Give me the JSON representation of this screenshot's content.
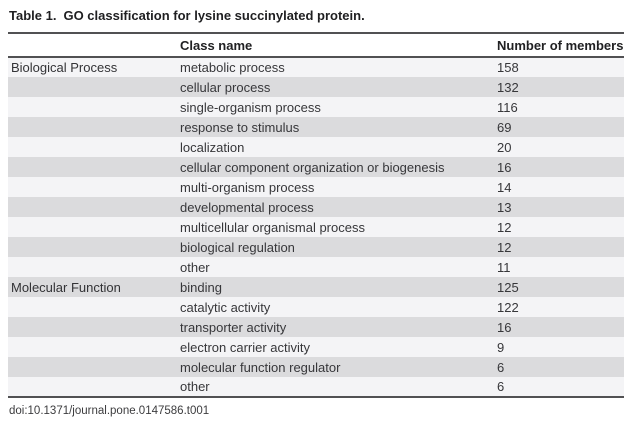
{
  "title": {
    "label": "Table 1.",
    "text": "GO classification for lysine succinylated protein."
  },
  "table": {
    "columns": {
      "group": "",
      "class_name": "Class name",
      "members": "Number of members"
    },
    "groups": [
      {
        "name": "Biological Process",
        "rows": [
          {
            "class_name": "metabolic process",
            "members": 158
          },
          {
            "class_name": "cellular process",
            "members": 132
          },
          {
            "class_name": "single-organism process",
            "members": 116
          },
          {
            "class_name": "response to stimulus",
            "members": 69
          },
          {
            "class_name": "localization",
            "members": 20
          },
          {
            "class_name": "cellular component organization or biogenesis",
            "members": 16
          },
          {
            "class_name": "multi-organism process",
            "members": 14
          },
          {
            "class_name": "developmental process",
            "members": 13
          },
          {
            "class_name": "multicellular organismal process",
            "members": 12
          },
          {
            "class_name": "biological regulation",
            "members": 12
          },
          {
            "class_name": "other",
            "members": 11
          }
        ]
      },
      {
        "name": "Molecular Function",
        "rows": [
          {
            "class_name": "binding",
            "members": 125
          },
          {
            "class_name": "catalytic activity",
            "members": 122
          },
          {
            "class_name": "transporter activity",
            "members": 16
          },
          {
            "class_name": "electron carrier activity",
            "members": 9
          },
          {
            "class_name": "molecular function regulator",
            "members": 6
          },
          {
            "class_name": "other",
            "members": 6
          }
        ]
      }
    ]
  },
  "footer": {
    "doi": "doi:10.1371/journal.pone.0147586.t001"
  },
  "colors": {
    "rule": "#515153",
    "row_light": "#f4f4f6",
    "row_shaded": "#dbdbdd",
    "text": "#37373a",
    "page_background": "#ffffff"
  },
  "chart_data": {
    "type": "table",
    "title": "Table 1. GO classification for lysine succinylated protein.",
    "columns": [
      "",
      "Class name",
      "Number of members"
    ],
    "rows": [
      [
        "Biological Process",
        "metabolic process",
        158
      ],
      [
        "",
        "cellular process",
        132
      ],
      [
        "",
        "single-organism process",
        116
      ],
      [
        "",
        "response to stimulus",
        69
      ],
      [
        "",
        "localization",
        20
      ],
      [
        "",
        "cellular component organization or biogenesis",
        16
      ],
      [
        "",
        "multi-organism process",
        14
      ],
      [
        "",
        "developmental process",
        13
      ],
      [
        "",
        "multicellular organismal process",
        12
      ],
      [
        "",
        "biological regulation",
        12
      ],
      [
        "",
        "other",
        11
      ],
      [
        "Molecular Function",
        "binding",
        125
      ],
      [
        "",
        "catalytic activity",
        122
      ],
      [
        "",
        "transporter activity",
        16
      ],
      [
        "",
        "electron carrier activity",
        9
      ],
      [
        "",
        "molecular function regulator",
        6
      ],
      [
        "",
        "other",
        6
      ]
    ],
    "footer": "doi:10.1371/journal.pone.0147586.t001"
  }
}
